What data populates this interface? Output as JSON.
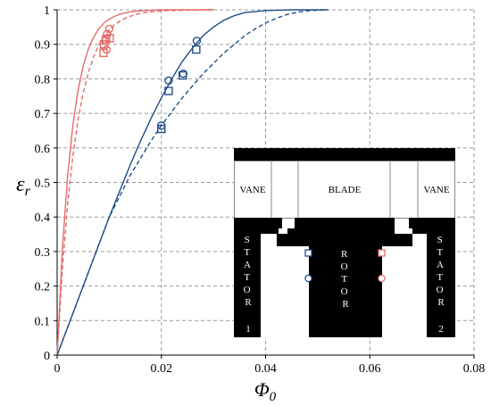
{
  "chart_data": {
    "type": "scatter",
    "xlabel": "Φ",
    "xlabel_sub": "0",
    "ylabel": "ε",
    "ylabel_sub": "r",
    "xlim": [
      0,
      0.08
    ],
    "ylim": [
      0,
      1
    ],
    "x_ticks": [
      0,
      0.02,
      0.04,
      0.06,
      0.08
    ],
    "x_tick_labels": [
      "0",
      "0.02",
      "0.04",
      "0.06",
      "0.08"
    ],
    "y_ticks": [
      0,
      0.1,
      0.2,
      0.3,
      0.4,
      0.5,
      0.6,
      0.7,
      0.8,
      0.9,
      1
    ],
    "y_tick_labels": [
      "0",
      "0.1",
      "0.2",
      "0.3",
      "0.4",
      "0.5",
      "0.6",
      "0.7",
      "0.8",
      "0.9",
      "1"
    ],
    "grid": true,
    "colors": {
      "red": "#e46c6a",
      "blue": "#1f4e8a"
    },
    "series": [
      {
        "kind": "line",
        "color": "red",
        "dash": false,
        "x": [
          0,
          0.001,
          0.002,
          0.003,
          0.004,
          0.005,
          0.006,
          0.007,
          0.008,
          0.009,
          0.01,
          0.011,
          0.012,
          0.013,
          0.014,
          0.015,
          0.016,
          0.018,
          0.02,
          0.025,
          0.03
        ],
        "y": [
          0,
          0.305,
          0.517,
          0.664,
          0.766,
          0.837,
          0.887,
          0.921,
          0.945,
          0.962,
          0.973,
          0.981,
          0.987,
          0.991,
          0.994,
          0.996,
          0.997,
          0.999,
          1,
          1,
          1
        ]
      },
      {
        "kind": "line",
        "color": "red",
        "dash": true,
        "x": [
          0,
          0.001,
          0.002,
          0.003,
          0.004,
          0.005,
          0.006,
          0.007,
          0.008,
          0.009,
          0.01,
          0.011,
          0.012,
          0.013,
          0.014,
          0.015,
          0.016,
          0.018,
          0.02,
          0.022,
          0.025,
          0.028,
          0.03
        ],
        "y": [
          0,
          0.248,
          0.435,
          0.575,
          0.68,
          0.759,
          0.819,
          0.864,
          0.898,
          0.923,
          0.942,
          0.957,
          0.967,
          0.975,
          0.981,
          0.986,
          0.99,
          0.994,
          0.997,
          0.998,
          0.999,
          1,
          1
        ]
      },
      {
        "kind": "line",
        "color": "blue",
        "dash": false,
        "x": [
          0,
          0.002,
          0.004,
          0.006,
          0.008,
          0.01,
          0.012,
          0.014,
          0.016,
          0.018,
          0.02,
          0.022,
          0.024,
          0.026,
          0.028,
          0.03,
          0.032,
          0.034,
          0.036,
          0.04,
          0.045,
          0.05,
          0.052
        ],
        "y": [
          0,
          0.08,
          0.16,
          0.24,
          0.32,
          0.4,
          0.475,
          0.55,
          0.62,
          0.685,
          0.745,
          0.8,
          0.85,
          0.89,
          0.925,
          0.95,
          0.97,
          0.983,
          0.992,
          0.998,
          1,
          1,
          1
        ]
      },
      {
        "kind": "line",
        "color": "blue",
        "dash": true,
        "x": [
          0,
          0.002,
          0.004,
          0.006,
          0.008,
          0.01,
          0.012,
          0.014,
          0.016,
          0.018,
          0.02,
          0.022,
          0.024,
          0.026,
          0.028,
          0.03,
          0.032,
          0.034,
          0.036,
          0.038,
          0.04,
          0.042,
          0.044,
          0.046,
          0.048,
          0.05,
          0.052
        ],
        "y": [
          0,
          0.08,
          0.16,
          0.24,
          0.32,
          0.4,
          0.46,
          0.52,
          0.57,
          0.62,
          0.665,
          0.705,
          0.745,
          0.78,
          0.815,
          0.845,
          0.875,
          0.9,
          0.925,
          0.945,
          0.962,
          0.975,
          0.986,
          0.993,
          0.997,
          0.999,
          1
        ]
      },
      {
        "kind": "points",
        "color": "red",
        "marker": "circle",
        "x": [
          0.0092,
          0.0096,
          0.01,
          0.0095
        ],
        "y": [
          0.91,
          0.93,
          0.945,
          0.885
        ]
      },
      {
        "kind": "points",
        "color": "red",
        "marker": "square",
        "x": [
          0.009,
          0.0094,
          0.0101,
          0.0089
        ],
        "y": [
          0.9,
          0.915,
          0.918,
          0.875
        ]
      },
      {
        "kind": "points",
        "color": "blue",
        "marker": "circle",
        "x": [
          0.02,
          0.0214,
          0.0242,
          0.0268
        ],
        "y": [
          0.665,
          0.795,
          0.815,
          0.91
        ]
      },
      {
        "kind": "points",
        "color": "blue",
        "marker": "square",
        "x": [
          0.02,
          0.0214,
          0.0241,
          0.0267
        ],
        "y": [
          0.655,
          0.765,
          0.81,
          0.885
        ]
      }
    ]
  },
  "inset": {
    "labels": {
      "vane_left": "VANE",
      "blade": "BLADE",
      "vane_right": "VANE",
      "stator_left": [
        "S",
        "T",
        "A",
        "T",
        "O",
        "R"
      ],
      "stator_left_num": "1",
      "rotor": [
        "R",
        "O",
        "T",
        "O",
        "R"
      ],
      "stator_right": [
        "S",
        "T",
        "A",
        "T",
        "O",
        "R"
      ],
      "stator_right_num": "2"
    }
  }
}
